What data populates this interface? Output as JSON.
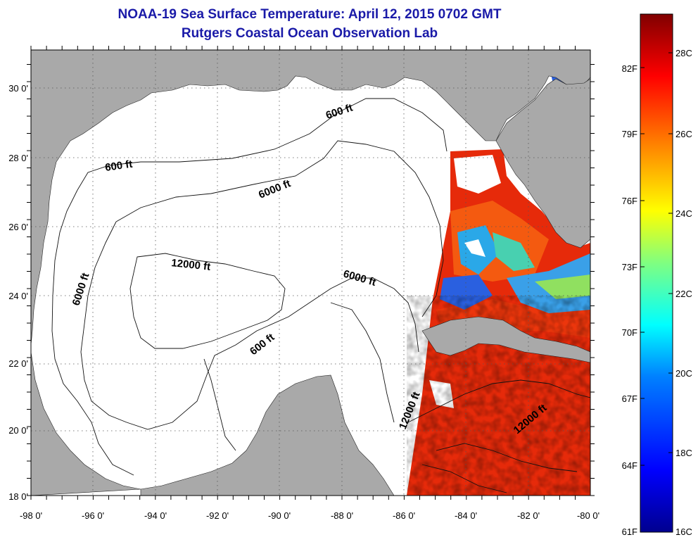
{
  "header": {
    "title": "NOAA-19 Sea Surface Temperature:  April 12, 2015 0702 GMT",
    "subtitle": "Rutgers Coastal Ocean Observation Lab"
  },
  "map": {
    "lon_ticks": [
      "-98 0'",
      "-96 0'",
      "-94 0'",
      "-92 0'",
      "-90 0'",
      "-88 0'",
      "-86 0'",
      "-84 0'",
      "-82 0'",
      "-80 0'"
    ],
    "lat_ticks": [
      "30 0'",
      "28 0'",
      "26 0'",
      "24 0'",
      "22 0'",
      "20 0'",
      "18 0'"
    ],
    "contour_labels": [
      "600 ft",
      "600 ft",
      "6000 ft",
      "6000 ft",
      "12000 ft",
      "6000 ft",
      "600 ft",
      "12000 ft",
      "12000 ft"
    ],
    "colors": {
      "land": "#a9a9a9",
      "ocean_nodata": "#ffffff",
      "grid": "#555555"
    }
  },
  "colorbar": {
    "fahrenheit_labels": [
      "82F",
      "79F",
      "76F",
      "73F",
      "70F",
      "67F",
      "64F",
      "61F"
    ],
    "celsius_labels": [
      "28C",
      "26C",
      "24C",
      "22C",
      "20C",
      "18C",
      "16C"
    ],
    "colors": [
      "#00008f",
      "#0000ff",
      "#0080ff",
      "#00ffff",
      "#80ff80",
      "#ffff00",
      "#ff8000",
      "#ff0000",
      "#800000"
    ]
  }
}
